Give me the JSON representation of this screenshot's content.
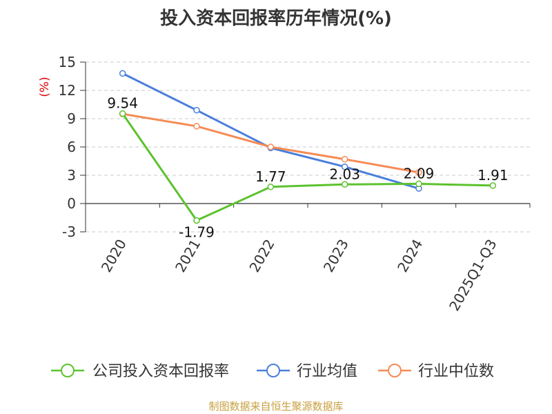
{
  "chart_data": {
    "type": "line",
    "title": "投入资本回报率历年情况(%)",
    "ylabel": "(%)",
    "categories": [
      "2020",
      "2021",
      "2022",
      "2023",
      "2024",
      "2025Q1-Q3"
    ],
    "ylim": [
      -3,
      15
    ],
    "yticks": [
      -3,
      0,
      3,
      6,
      9,
      12,
      15
    ],
    "grid": true,
    "legend_position": "bottom",
    "series": [
      {
        "name": "公司投入资本回报率",
        "color": "#5cc22e",
        "values": [
          9.54,
          -1.79,
          1.77,
          2.03,
          2.09,
          1.91
        ],
        "labels": [
          "9.54",
          "-1.79",
          "1.77",
          "2.03",
          "2.09",
          "1.91"
        ]
      },
      {
        "name": "行业均值",
        "color": "#4a7fdb",
        "values": [
          13.8,
          9.9,
          5.9,
          3.9,
          1.6,
          null
        ]
      },
      {
        "name": "行业中位数",
        "color": "#f58b55",
        "values": [
          9.5,
          8.2,
          6.0,
          4.7,
          3.3,
          null
        ]
      }
    ]
  },
  "source_note": "制图数据来自恒生聚源数据库"
}
